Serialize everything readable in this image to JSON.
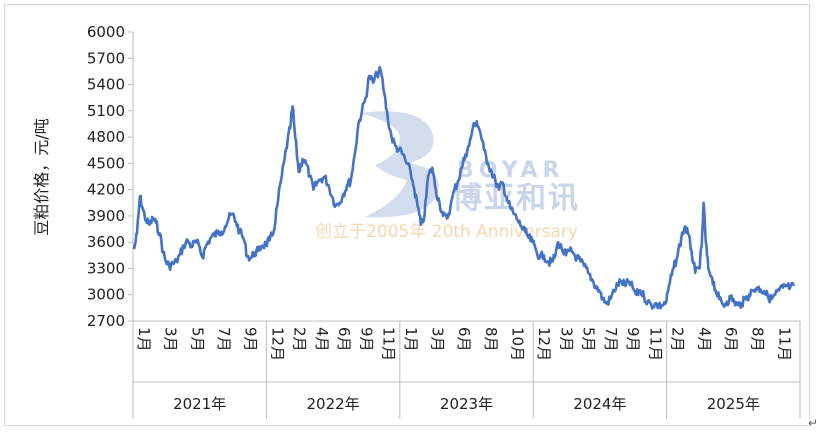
{
  "chart_data": {
    "type": "line",
    "title": "",
    "ylabel": "豆粕价格，元/吨",
    "xlabel": "",
    "ylim": [
      2700,
      6000
    ],
    "yticks": [
      2700,
      3000,
      3300,
      3600,
      3900,
      4200,
      4500,
      4800,
      5100,
      5400,
      5700,
      6000
    ],
    "grid": false,
    "legend": "none",
    "line_color": "#4472c4",
    "x_start": "2021-01",
    "x_end": "2025-12",
    "years": [
      {
        "label": "2021年",
        "months": [
          "1月",
          "3月",
          "5月",
          "7月",
          "9月"
        ]
      },
      {
        "label": "2022年",
        "months": [
          "12月",
          "2月",
          "4月",
          "6月",
          "9月",
          "11月"
        ]
      },
      {
        "label": "2023年",
        "months": [
          "1月",
          "3月",
          "6月",
          "8月",
          "10月"
        ]
      },
      {
        "label": "2024年",
        "months": [
          "12月",
          "3月",
          "5月",
          "7月",
          "9月",
          "11月"
        ]
      },
      {
        "label": "2025年",
        "months": [
          "2月",
          "4月",
          "6月",
          "8月",
          "11月"
        ]
      }
    ],
    "series": [
      {
        "values": [
          [
            "2021-01-04",
            3520
          ],
          [
            "2021-01-12",
            3700
          ],
          [
            "2021-01-20",
            4120
          ],
          [
            "2021-01-28",
            3980
          ],
          [
            "2021-02-05",
            3850
          ],
          [
            "2021-02-15",
            3800
          ],
          [
            "2021-02-25",
            3870
          ],
          [
            "2021-03-05",
            3820
          ],
          [
            "2021-03-15",
            3700
          ],
          [
            "2021-03-25",
            3480
          ],
          [
            "2021-04-01",
            3380
          ],
          [
            "2021-04-10",
            3330
          ],
          [
            "2021-04-20",
            3350
          ],
          [
            "2021-04-30",
            3380
          ],
          [
            "2021-05-10",
            3460
          ],
          [
            "2021-05-20",
            3560
          ],
          [
            "2021-05-31",
            3620
          ],
          [
            "2021-06-10",
            3550
          ],
          [
            "2021-06-20",
            3600
          ],
          [
            "2021-06-30",
            3570
          ],
          [
            "2021-07-10",
            3430
          ],
          [
            "2021-07-20",
            3560
          ],
          [
            "2021-07-31",
            3640
          ],
          [
            "2021-08-10",
            3680
          ],
          [
            "2021-08-20",
            3700
          ],
          [
            "2021-08-31",
            3720
          ],
          [
            "2021-09-10",
            3780
          ],
          [
            "2021-09-20",
            3870
          ],
          [
            "2021-09-30",
            3920
          ],
          [
            "2021-10-10",
            3830
          ],
          [
            "2021-10-20",
            3720
          ],
          [
            "2021-10-31",
            3640
          ],
          [
            "2021-11-10",
            3440
          ],
          [
            "2021-11-20",
            3420
          ],
          [
            "2021-11-30",
            3480
          ],
          [
            "2021-12-10",
            3500
          ],
          [
            "2021-12-20",
            3560
          ],
          [
            "2021-12-31",
            3580
          ],
          [
            "2022-01-10",
            3620
          ],
          [
            "2022-01-20",
            3700
          ],
          [
            "2022-01-31",
            4020
          ],
          [
            "2022-02-10",
            4300
          ],
          [
            "2022-02-20",
            4550
          ],
          [
            "2022-02-28",
            4750
          ],
          [
            "2022-03-07",
            4900
          ],
          [
            "2022-03-14",
            5150
          ],
          [
            "2022-03-21",
            4800
          ],
          [
            "2022-03-31",
            4400
          ],
          [
            "2022-04-10",
            4550
          ],
          [
            "2022-04-20",
            4500
          ],
          [
            "2022-04-30",
            4350
          ],
          [
            "2022-05-10",
            4200
          ],
          [
            "2022-05-20",
            4280
          ],
          [
            "2022-05-31",
            4320
          ],
          [
            "2022-06-10",
            4340
          ],
          [
            "2022-06-20",
            4250
          ],
          [
            "2022-06-30",
            4120
          ],
          [
            "2022-07-10",
            4020
          ],
          [
            "2022-07-20",
            4050
          ],
          [
            "2022-07-31",
            4150
          ],
          [
            "2022-08-10",
            4250
          ],
          [
            "2022-08-20",
            4300
          ],
          [
            "2022-08-31",
            4600
          ],
          [
            "2022-09-10",
            4950
          ],
          [
            "2022-09-20",
            5100
          ],
          [
            "2022-09-30",
            5250
          ],
          [
            "2022-10-10",
            5500
          ],
          [
            "2022-10-20",
            5420
          ],
          [
            "2022-10-31",
            5520
          ],
          [
            "2022-11-10",
            5560
          ],
          [
            "2022-11-20",
            5300
          ],
          [
            "2022-11-30",
            5000
          ],
          [
            "2022-12-10",
            4800
          ],
          [
            "2022-12-20",
            4700
          ],
          [
            "2022-12-31",
            4650
          ],
          [
            "2023-01-10",
            4600
          ],
          [
            "2023-01-20",
            4500
          ],
          [
            "2023-01-31",
            4400
          ],
          [
            "2023-02-10",
            4200
          ],
          [
            "2023-02-20",
            4000
          ],
          [
            "2023-02-28",
            3800
          ],
          [
            "2023-03-10",
            3900
          ],
          [
            "2023-03-20",
            4350
          ],
          [
            "2023-03-31",
            4450
          ],
          [
            "2023-04-10",
            4200
          ],
          [
            "2023-04-20",
            4050
          ],
          [
            "2023-04-30",
            3900
          ],
          [
            "2023-05-10",
            3870
          ],
          [
            "2023-05-20",
            4000
          ],
          [
            "2023-05-31",
            4200
          ],
          [
            "2023-06-10",
            4300
          ],
          [
            "2023-06-20",
            4450
          ],
          [
            "2023-06-30",
            4600
          ],
          [
            "2023-07-10",
            4700
          ],
          [
            "2023-07-20",
            4900
          ],
          [
            "2023-07-31",
            4980
          ],
          [
            "2023-08-10",
            4850
          ],
          [
            "2023-08-20",
            4650
          ],
          [
            "2023-08-31",
            4500
          ],
          [
            "2023-09-10",
            4400
          ],
          [
            "2023-09-20",
            4300
          ],
          [
            "2023-09-30",
            4200
          ],
          [
            "2023-10-10",
            4280
          ],
          [
            "2023-10-20",
            4120
          ],
          [
            "2023-10-31",
            3990
          ],
          [
            "2023-11-10",
            3920
          ],
          [
            "2023-11-20",
            3850
          ],
          [
            "2023-11-30",
            3780
          ],
          [
            "2023-12-10",
            3720
          ],
          [
            "2023-12-20",
            3650
          ],
          [
            "2023-12-31",
            3600
          ],
          [
            "2024-01-10",
            3500
          ],
          [
            "2024-01-20",
            3430
          ],
          [
            "2024-01-31",
            3450
          ],
          [
            "2024-02-10",
            3380
          ],
          [
            "2024-02-20",
            3370
          ],
          [
            "2024-02-29",
            3420
          ],
          [
            "2024-03-10",
            3600
          ],
          [
            "2024-03-20",
            3520
          ],
          [
            "2024-03-31",
            3450
          ],
          [
            "2024-04-10",
            3500
          ],
          [
            "2024-04-20",
            3480
          ],
          [
            "2024-04-30",
            3420
          ],
          [
            "2024-05-10",
            3380
          ],
          [
            "2024-05-20",
            3330
          ],
          [
            "2024-05-31",
            3250
          ],
          [
            "2024-06-10",
            3180
          ],
          [
            "2024-06-20",
            3100
          ],
          [
            "2024-06-30",
            3050
          ],
          [
            "2024-07-10",
            2950
          ],
          [
            "2024-07-20",
            2900
          ],
          [
            "2024-07-31",
            2950
          ],
          [
            "2024-08-10",
            3050
          ],
          [
            "2024-08-20",
            3120
          ],
          [
            "2024-08-31",
            3150
          ],
          [
            "2024-09-10",
            3100
          ],
          [
            "2024-09-20",
            3150
          ],
          [
            "2024-09-30",
            3080
          ],
          [
            "2024-10-10",
            3000
          ],
          [
            "2024-10-20",
            3050
          ],
          [
            "2024-10-31",
            2980
          ],
          [
            "2024-11-10",
            2920
          ],
          [
            "2024-11-20",
            2880
          ],
          [
            "2024-11-30",
            2900
          ],
          [
            "2024-12-10",
            2870
          ],
          [
            "2024-12-20",
            2880
          ],
          [
            "2024-12-31",
            2920
          ],
          [
            "2025-01-10",
            3150
          ],
          [
            "2025-01-20",
            3300
          ],
          [
            "2025-01-31",
            3450
          ],
          [
            "2025-02-10",
            3650
          ],
          [
            "2025-02-20",
            3780
          ],
          [
            "2025-02-28",
            3700
          ],
          [
            "2025-03-10",
            3500
          ],
          [
            "2025-03-20",
            3250
          ],
          [
            "2025-03-31",
            3300
          ],
          [
            "2025-04-07",
            3550
          ],
          [
            "2025-04-12",
            4050
          ],
          [
            "2025-04-18",
            3600
          ],
          [
            "2025-04-25",
            3300
          ],
          [
            "2025-05-05",
            3200
          ],
          [
            "2025-05-15",
            3050
          ],
          [
            "2025-05-25",
            2950
          ],
          [
            "2025-06-05",
            2880
          ],
          [
            "2025-06-15",
            2920
          ],
          [
            "2025-06-25",
            2970
          ],
          [
            "2025-07-05",
            2920
          ],
          [
            "2025-07-15",
            2880
          ],
          [
            "2025-07-25",
            2900
          ],
          [
            "2025-08-05",
            2950
          ],
          [
            "2025-08-15",
            3000
          ],
          [
            "2025-08-25",
            3050
          ],
          [
            "2025-09-05",
            3080
          ],
          [
            "2025-09-15",
            3060
          ],
          [
            "2025-09-25",
            3040
          ],
          [
            "2025-10-05",
            2980
          ],
          [
            "2025-10-15",
            2950
          ],
          [
            "2025-10-25",
            3000
          ],
          [
            "2025-11-05",
            3050
          ],
          [
            "2025-11-15",
            3080
          ],
          [
            "2025-11-25",
            3100
          ],
          [
            "2025-12-05",
            3080
          ],
          [
            "2025-12-15",
            3100
          ]
        ]
      }
    ]
  },
  "watermark": {
    "brand_en": "BOYAR",
    "brand_cn": "博亚和讯",
    "slogan": "创立于2005年 20th Anniversary",
    "logo_color": "#c9d5ea",
    "slogan_color": "#f6d6ad"
  }
}
